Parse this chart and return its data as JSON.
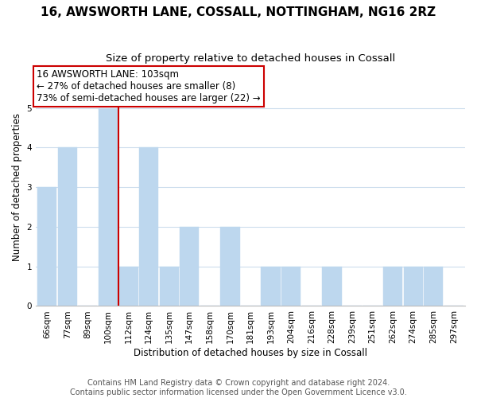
{
  "title": "16, AWSWORTH LANE, COSSALL, NOTTINGHAM, NG16 2RZ",
  "subtitle": "Size of property relative to detached houses in Cossall",
  "xlabel": "Distribution of detached houses by size in Cossall",
  "ylabel": "Number of detached properties",
  "footer_lines": [
    "Contains HM Land Registry data © Crown copyright and database right 2024.",
    "Contains public sector information licensed under the Open Government Licence v3.0."
  ],
  "bins": [
    "66sqm",
    "77sqm",
    "89sqm",
    "100sqm",
    "112sqm",
    "124sqm",
    "135sqm",
    "147sqm",
    "158sqm",
    "170sqm",
    "181sqm",
    "193sqm",
    "204sqm",
    "216sqm",
    "228sqm",
    "239sqm",
    "251sqm",
    "262sqm",
    "274sqm",
    "285sqm",
    "297sqm"
  ],
  "values": [
    3,
    4,
    0,
    5,
    1,
    4,
    1,
    2,
    0,
    2,
    0,
    1,
    1,
    0,
    1,
    0,
    0,
    1,
    1,
    1,
    0
  ],
  "bar_color": "#bdd7ee",
  "bar_edge_color": "#bdd7ee",
  "property_line_index": 3,
  "property_line_color": "#cc0000",
  "annotation_line1": "16 AWSWORTH LANE: 103sqm",
  "annotation_line2": "← 27% of detached houses are smaller (8)",
  "annotation_line3": "73% of semi-detached houses are larger (22) →",
  "annotation_box_edge_color": "#cc0000",
  "annotation_box_face_color": "#ffffff",
  "ylim": [
    0,
    6
  ],
  "yticks": [
    0,
    1,
    2,
    3,
    4,
    5,
    6
  ],
  "background_color": "#ffffff",
  "grid_color": "#ccdded",
  "title_fontsize": 11,
  "subtitle_fontsize": 9.5,
  "axis_label_fontsize": 8.5,
  "tick_fontsize": 7.5,
  "annotation_fontsize": 8.5,
  "footer_fontsize": 7
}
